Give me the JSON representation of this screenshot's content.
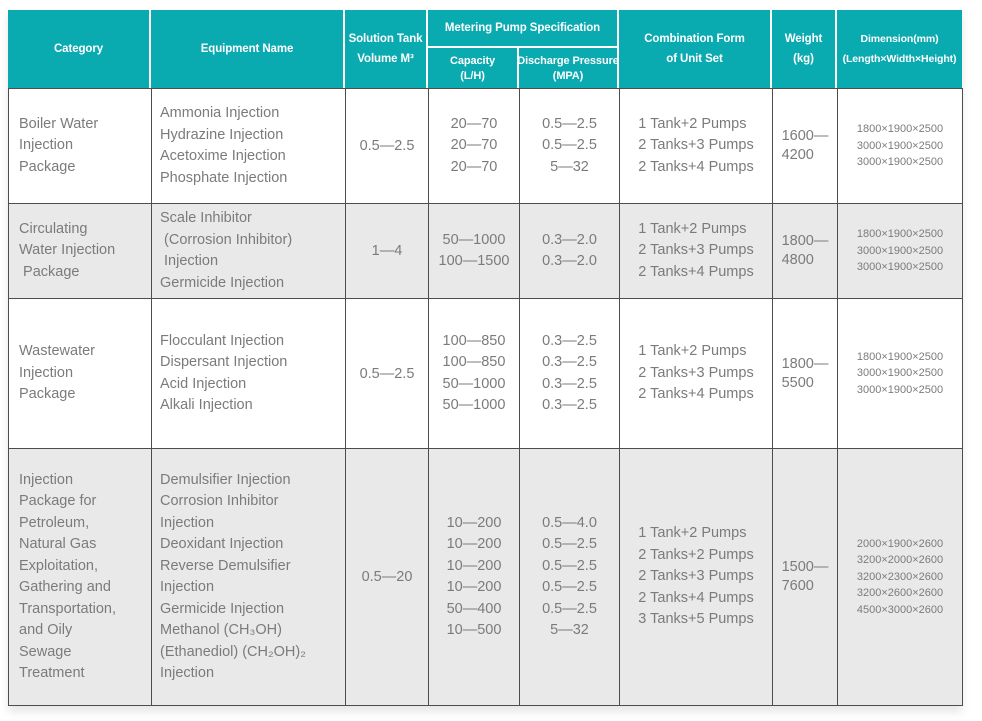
{
  "colors": {
    "header_bg": "#0AAAB1",
    "header_text": "#FFFFFF",
    "row_alt_bg": "#E9E9E9",
    "border": "#4D4D4D",
    "body_text": "#7B7B7B"
  },
  "header": {
    "category": "Category",
    "equipment": "Equipment Name",
    "tank": [
      "Solution Tank",
      "Volume M³"
    ],
    "metering": "Metering Pump Specification",
    "capacity": [
      "Capacity",
      "(L/H)"
    ],
    "pressure": [
      "Discharge Pressure",
      "(MPA)"
    ],
    "combination": [
      "Combination Form",
      "of Unit Set"
    ],
    "weight": [
      "Weight",
      "(kg)"
    ],
    "dimension": [
      "Dimension(mm)",
      "(Length×Width×Height)"
    ]
  },
  "rows": [
    {
      "category": [
        "Boiler Water",
        "Injection",
        "Package"
      ],
      "equipment": [
        "Ammonia Injection",
        "Hydrazine Injection",
        "Acetoxime Injection",
        "Phosphate Injection"
      ],
      "tank": "0.5—2.5",
      "capacity": [
        "20—70",
        "20—70",
        "20—70"
      ],
      "pressure": [
        "0.5—2.5",
        "0.5—2.5",
        "5—32"
      ],
      "combination": [
        "1 Tank+2 Pumps",
        "2 Tanks+3 Pumps",
        "2 Tanks+4 Pumps"
      ],
      "weight": [
        "1600—",
        "4200"
      ],
      "dimension": [
        "1800×1900×2500",
        "3000×1900×2500",
        "3000×1900×2500"
      ]
    },
    {
      "category": [
        "Circulating",
        "Water Injection",
        " Package"
      ],
      "equipment": [
        "Scale Inhibitor",
        " (Corrosion Inhibitor)",
        " Injection",
        "Germicide Injection"
      ],
      "tank": "1—4",
      "capacity": [
        "50—1000",
        "100—1500"
      ],
      "pressure": [
        "0.3—2.0",
        "0.3—2.0"
      ],
      "combination": [
        "1 Tank+2 Pumps",
        "2 Tanks+3 Pumps",
        "2 Tanks+4 Pumps"
      ],
      "weight": [
        "1800—",
        "4800"
      ],
      "dimension": [
        "1800×1900×2500",
        "3000×1900×2500",
        "3000×1900×2500"
      ]
    },
    {
      "category": [
        "Wastewater",
        "Injection",
        "Package"
      ],
      "equipment": [
        "Flocculant Injection",
        "Dispersant Injection",
        "Acid Injection",
        "Alkali Injection"
      ],
      "tank": "0.5—2.5",
      "capacity": [
        "100—850",
        "100—850",
        "50—1000",
        "50—1000"
      ],
      "pressure": [
        "0.3—2.5",
        "0.3—2.5",
        "0.3—2.5",
        "0.3—2.5"
      ],
      "combination": [
        "1 Tank+2 Pumps",
        "2 Tanks+3 Pumps",
        "2 Tanks+4 Pumps"
      ],
      "weight": [
        "1800—",
        "5500"
      ],
      "dimension": [
        "1800×1900×2500",
        "3000×1900×2500",
        "3000×1900×2500"
      ]
    },
    {
      "category": [
        "Injection",
        "Package for",
        "Petroleum,",
        "Natural Gas",
        "Exploitation,",
        "Gathering and",
        "Transportation,",
        "and Oily",
        "Sewage",
        "Treatment"
      ],
      "equipment": [
        "Demulsifier Injection",
        "Corrosion Inhibitor",
        "Injection",
        "Deoxidant Injection",
        "Reverse Demulsifier",
        "Injection",
        "Germicide Injection",
        "Methanol (CH₃OH)",
        "(Ethanediol) (CH₂OH)₂",
        "Injection"
      ],
      "tank": "0.5—20",
      "capacity": [
        "10—200",
        "10—200",
        "10—200",
        "10—200",
        "50—400",
        "10—500"
      ],
      "pressure": [
        "0.5—4.0",
        "0.5—2.5",
        "0.5—2.5",
        "0.5—2.5",
        "0.5—2.5",
        "5—32"
      ],
      "combination": [
        "1 Tank+2 Pumps",
        "2 Tanks+2 Pumps",
        "2 Tanks+3 Pumps",
        "2 Tanks+4 Pumps",
        "3 Tanks+5 Pumps"
      ],
      "weight": [
        "1500—",
        "7600"
      ],
      "dimension": [
        "2000×1900×2600",
        "3200×2000×2600",
        "3200×2300×2600",
        "3200×2600×2600",
        "4500×3000×2600"
      ]
    }
  ]
}
